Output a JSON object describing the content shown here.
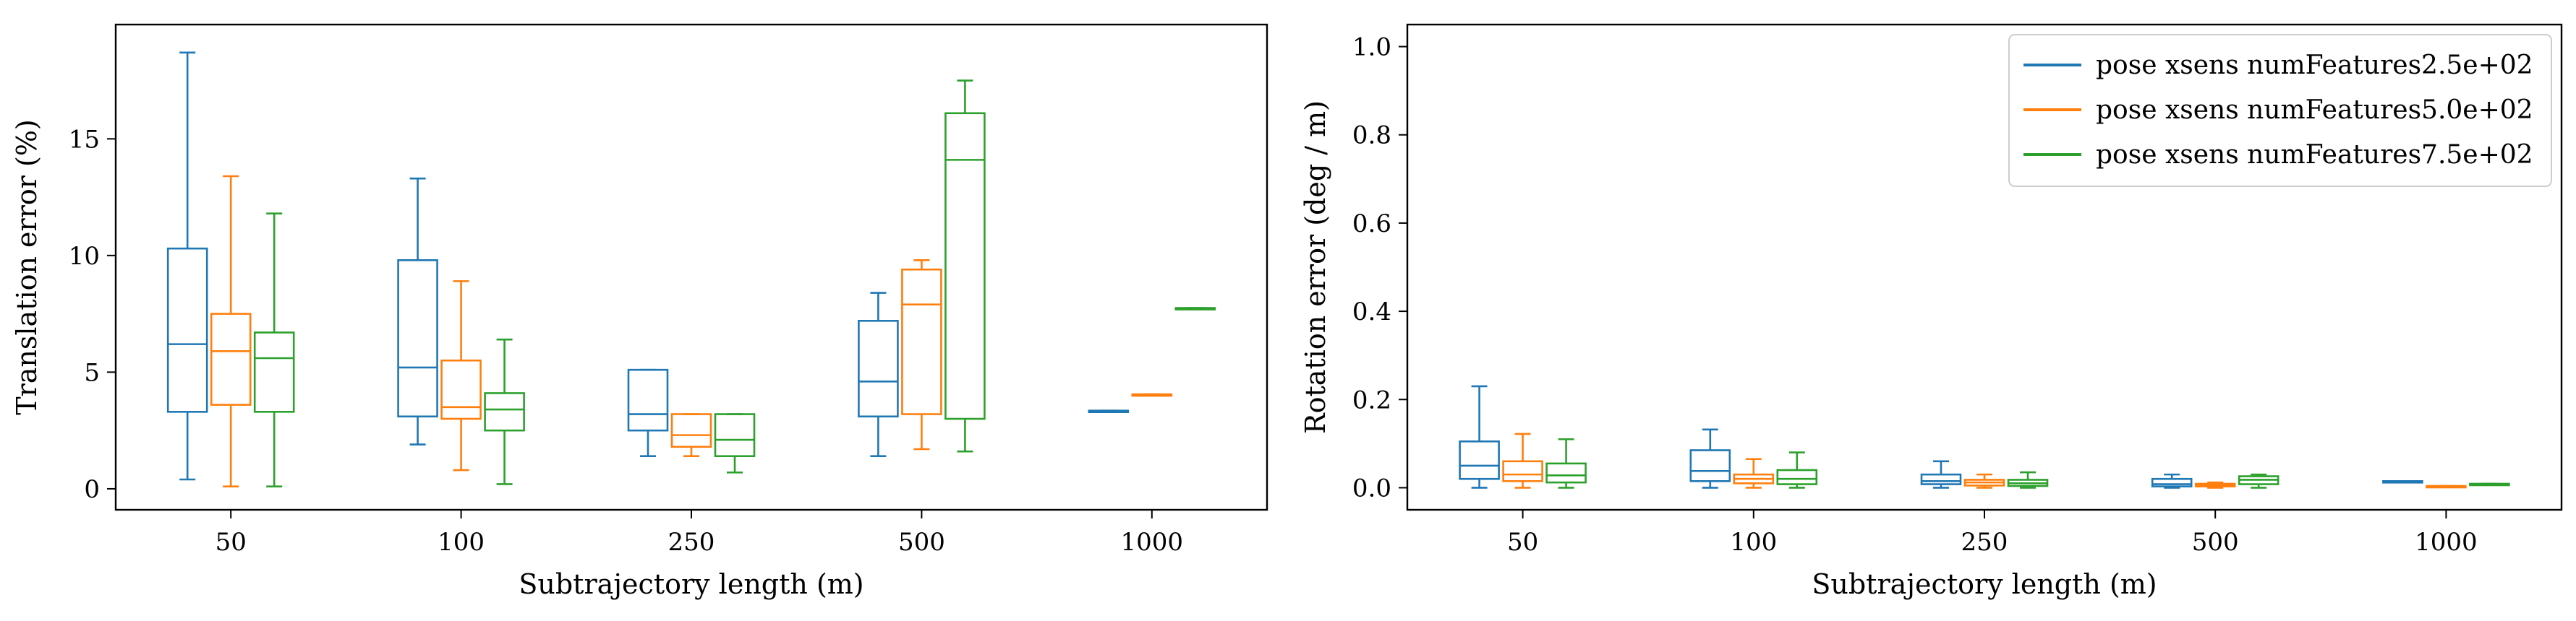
{
  "legend": {
    "entries": [
      {
        "label": "pose xsens numFeatures2.5e+02",
        "color": "#1f77b4"
      },
      {
        "label": "pose xsens numFeatures5.0e+02",
        "color": "#ff7f0e"
      },
      {
        "label": "pose xsens numFeatures7.5e+02",
        "color": "#2ca02c"
      }
    ],
    "placement": "top-right of right panel"
  },
  "chart_data": [
    {
      "type": "box",
      "title": "",
      "xlabel": "Subtrajectory length (m)",
      "ylabel": "Translation error (%)",
      "ylim": [
        -0.9,
        19.9
      ],
      "yticks": [
        0,
        5,
        10,
        15
      ],
      "grid": false,
      "categories": [
        "50",
        "100",
        "250",
        "500",
        "1000"
      ],
      "series": [
        {
          "name": "pose xsens numFeatures2.5e+02",
          "color": "#1f77b4",
          "boxes": [
            {
              "min": 0.4,
              "q1": 3.3,
              "median": 6.2,
              "q3": 10.3,
              "max": 18.7
            },
            {
              "min": 1.9,
              "q1": 3.1,
              "median": 5.2,
              "q3": 9.8,
              "max": 13.3
            },
            {
              "min": 1.4,
              "q1": 2.5,
              "median": 3.2,
              "q3": 5.1,
              "max": 5.1
            },
            {
              "min": 1.4,
              "q1": 3.1,
              "median": 4.6,
              "q3": 7.2,
              "max": 8.4
            },
            {
              "min": 3.3,
              "q1": 3.3,
              "median": 3.3,
              "q3": 3.35,
              "max": 3.35
            }
          ]
        },
        {
          "name": "pose xsens numFeatures5.0e+02",
          "color": "#ff7f0e",
          "boxes": [
            {
              "min": 0.1,
              "q1": 3.6,
              "median": 5.9,
              "q3": 7.5,
              "max": 13.4
            },
            {
              "min": 0.8,
              "q1": 3.0,
              "median": 3.5,
              "q3": 5.5,
              "max": 8.9
            },
            {
              "min": 1.4,
              "q1": 1.8,
              "median": 2.3,
              "q3": 3.2,
              "max": 3.2
            },
            {
              "min": 1.7,
              "q1": 3.2,
              "median": 7.9,
              "q3": 9.4,
              "max": 9.8
            },
            {
              "min": 4.0,
              "q1": 4.0,
              "median": 4.0,
              "q3": 4.05,
              "max": 4.05
            }
          ]
        },
        {
          "name": "pose xsens numFeatures7.5e+02",
          "color": "#2ca02c",
          "boxes": [
            {
              "min": 0.1,
              "q1": 3.3,
              "median": 5.6,
              "q3": 6.7,
              "max": 11.8
            },
            {
              "min": 0.2,
              "q1": 2.5,
              "median": 3.4,
              "q3": 4.1,
              "max": 6.4
            },
            {
              "min": 0.7,
              "q1": 1.4,
              "median": 2.1,
              "q3": 3.2,
              "max": 3.2
            },
            {
              "min": 1.6,
              "q1": 3.0,
              "median": 14.1,
              "q3": 16.1,
              "max": 17.5
            },
            {
              "min": 7.7,
              "q1": 7.7,
              "median": 7.7,
              "q3": 7.75,
              "max": 7.75
            }
          ]
        }
      ]
    },
    {
      "type": "box",
      "title": "",
      "xlabel": "Subtrajectory length (m)",
      "ylabel": "Rotation error (deg / m)",
      "ylim": [
        -0.05,
        1.05
      ],
      "yticks": [
        0.0,
        0.2,
        0.4,
        0.6,
        0.8,
        1.0
      ],
      "ytick_labels": [
        "0.0",
        "0.2",
        "0.4",
        "0.6",
        "0.8",
        "1.0"
      ],
      "grid": false,
      "categories": [
        "50",
        "100",
        "250",
        "500",
        "1000"
      ],
      "series": [
        {
          "name": "pose xsens numFeatures2.5e+02",
          "color": "#1f77b4",
          "boxes": [
            {
              "min": 0.0,
              "q1": 0.02,
              "median": 0.05,
              "q3": 0.105,
              "max": 0.23
            },
            {
              "min": 0.0,
              "q1": 0.015,
              "median": 0.038,
              "q3": 0.085,
              "max": 0.132
            },
            {
              "min": 0.0,
              "q1": 0.008,
              "median": 0.015,
              "q3": 0.03,
              "max": 0.06
            },
            {
              "min": 0.0,
              "q1": 0.003,
              "median": 0.008,
              "q3": 0.02,
              "max": 0.03
            },
            {
              "min": 0.013,
              "q1": 0.013,
              "median": 0.014,
              "q3": 0.015,
              "max": 0.015
            }
          ]
        },
        {
          "name": "pose xsens numFeatures5.0e+02",
          "color": "#ff7f0e",
          "boxes": [
            {
              "min": 0.0,
              "q1": 0.015,
              "median": 0.03,
              "q3": 0.06,
              "max": 0.122
            },
            {
              "min": 0.0,
              "q1": 0.01,
              "median": 0.02,
              "q3": 0.03,
              "max": 0.065
            },
            {
              "min": 0.0,
              "q1": 0.005,
              "median": 0.012,
              "q3": 0.018,
              "max": 0.03
            },
            {
              "min": 0.0,
              "q1": 0.003,
              "median": 0.006,
              "q3": 0.009,
              "max": 0.012
            },
            {
              "min": 0.002,
              "q1": 0.002,
              "median": 0.003,
              "q3": 0.004,
              "max": 0.004
            }
          ]
        },
        {
          "name": "pose xsens numFeatures7.5e+02",
          "color": "#2ca02c",
          "boxes": [
            {
              "min": 0.0,
              "q1": 0.012,
              "median": 0.028,
              "q3": 0.055,
              "max": 0.11
            },
            {
              "min": 0.0,
              "q1": 0.008,
              "median": 0.02,
              "q3": 0.04,
              "max": 0.08
            },
            {
              "min": 0.0,
              "q1": 0.004,
              "median": 0.01,
              "q3": 0.018,
              "max": 0.035
            },
            {
              "min": 0.0,
              "q1": 0.008,
              "median": 0.018,
              "q3": 0.026,
              "max": 0.03
            },
            {
              "min": 0.007,
              "q1": 0.007,
              "median": 0.008,
              "q3": 0.009,
              "max": 0.009
            }
          ]
        }
      ]
    }
  ]
}
